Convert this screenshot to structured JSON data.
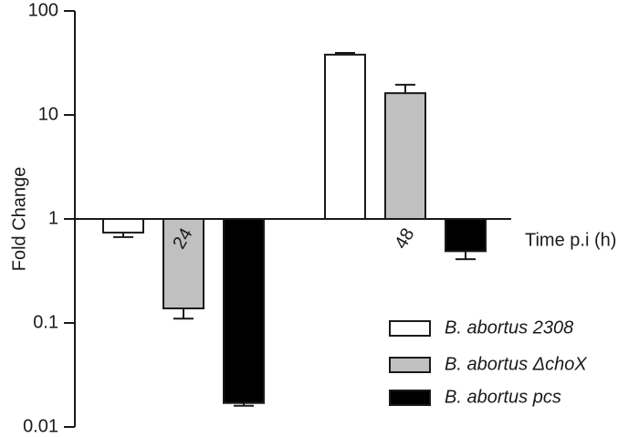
{
  "chart_data": {
    "type": "bar",
    "log_scale": true,
    "y_label": "Fold Change",
    "x_label": "Time p.i (h)",
    "categories": [
      "24",
      "48"
    ],
    "series": [
      {
        "name": "B. abortus 2308",
        "color": "#ffffff",
        "values": [
          0.74,
          38
        ],
        "errors": [
          0.07,
          1.5
        ]
      },
      {
        "name": "B. abortus ΔchoX",
        "color": "#c0c0c0",
        "values": [
          0.138,
          16.2
        ],
        "errors": [
          0.028,
          3.3
        ]
      },
      {
        "name": "B. abortus pcs",
        "color": "#000000",
        "values": [
          0.017,
          0.49
        ],
        "errors": [
          0.001,
          0.08
        ]
      }
    ],
    "ylim": [
      0.01,
      100
    ],
    "yticks": [
      {
        "value": 0.01,
        "label": "0.01"
      },
      {
        "value": 0.1,
        "label": "0.1"
      },
      1,
      10,
      100
    ],
    "baseline": 1,
    "legend": "bottom-right"
  }
}
